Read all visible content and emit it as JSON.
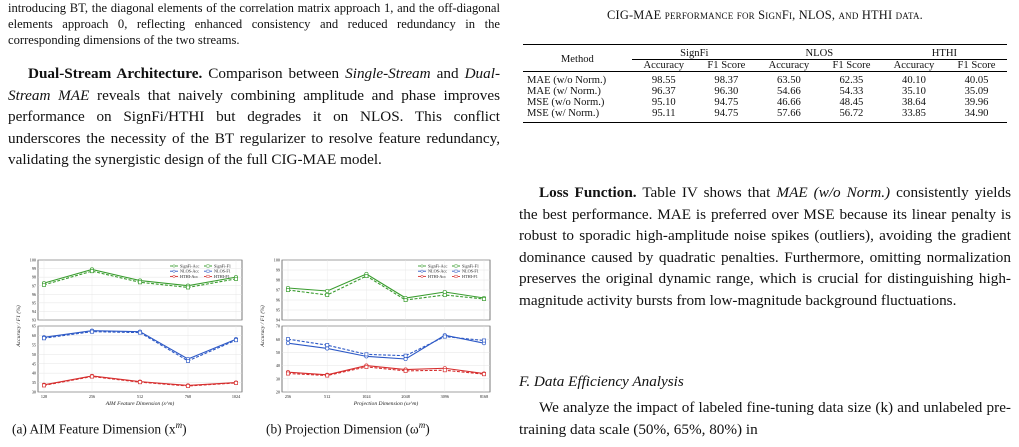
{
  "left_top_text": "introducing BT, the diagonal elements of the correlation matrix approach 1, and the off-diagonal elements approach 0, reflecting enhanced consistency and reduced redundancy in the corresponding dimensions of the two streams.",
  "dual_stream": {
    "heading": "Dual-Stream Architecture.",
    "text_1": " Comparison between ",
    "single_stream": "Single-Stream",
    "text_2": " and ",
    "dual_stream_mae": "Dual-Stream MAE",
    "text_3": " reveals that naively combining amplitude and phase improves performance on SignFi/HTHI but degrades it on NLOS. This conflict underscores the necessity of the BT regularizer to resolve feature redundancy, validating the synergistic design of the full CIG-MAE model."
  },
  "table": {
    "caption": "CIG-MAE performance for SignFi, NLOS, and HTHI data.",
    "method_header": "Method",
    "groups": [
      "SignFi",
      "NLOS",
      "HTHI"
    ],
    "sub_headers": [
      "Accuracy",
      "F1 Score",
      "Accuracy",
      "F1 Score",
      "Accuracy",
      "F1 Score"
    ],
    "rows": [
      {
        "method": "MAE (w/o Norm.)",
        "values": [
          "98.55",
          "98.37",
          "63.50",
          "62.35",
          "40.10",
          "40.05"
        ]
      },
      {
        "method": "MAE (w/ Norm.)",
        "values": [
          "96.37",
          "96.30",
          "54.66",
          "54.33",
          "35.10",
          "35.09"
        ]
      },
      {
        "method": "MSE (w/o Norm.)",
        "values": [
          "95.10",
          "94.75",
          "46.66",
          "48.45",
          "38.64",
          "39.96"
        ]
      },
      {
        "method": "MSE (w/ Norm.)",
        "values": [
          "95.11",
          "94.75",
          "57.66",
          "56.72",
          "33.85",
          "34.90"
        ]
      }
    ]
  },
  "loss_function": {
    "heading": "Loss Function.",
    "text_1": " Table IV shows that ",
    "italic": "MAE (w/o Norm.)",
    "text_2": " consistently yields the best performance. MAE is preferred over MSE because its linear penalty is robust to sporadic high-amplitude noise spikes (outliers), avoiding the gradient dominance caused by quadratic penalties. Furthermore, omitting normalization preserves the original dynamic range, which is crucial for distinguishing high-magnitude activity bursts from low-magnitude background fluctuations."
  },
  "section_f": "F. Data Efficiency Analysis",
  "data_eff_text": "We analyze the impact of labeled fine-tuning data size (k) and unlabeled pre-training data scale (50%, 65%, 80%) in",
  "figures": {
    "caption_a": "(a) AIM Feature Dimension (x",
    "caption_a_sup": "m",
    "caption_b": "(b) Projection Dimension (ω",
    "caption_b_sup": "m",
    "colors": {
      "signfi": "#3a9d2f",
      "nlos": "#2d59c6",
      "hthi": "#d62e2e"
    }
  },
  "chart_data": [
    {
      "type": "line",
      "xlabel": "AIM Feature Dimension (x^m)",
      "ylabel": "Accuracy / F1 (%)",
      "categories": [
        "128",
        "256",
        "512",
        "768",
        "1024"
      ],
      "legend": [
        "SignFi-Acc",
        "SignFi-F1",
        "NLOS-Acc",
        "NLOS-F1",
        "HTHI-Acc",
        "HTHI-F1"
      ],
      "upper": {
        "yticks": [
          "93",
          "94",
          "95",
          "96",
          "97",
          "98",
          "99",
          "100"
        ],
        "ylim": [
          93,
          100
        ],
        "series": [
          {
            "name": "SignFi-Acc",
            "values": [
              97.3,
              98.9,
              97.6,
              97.0,
              98.0
            ]
          },
          {
            "name": "SignFi-F1",
            "values": [
              97.1,
              98.7,
              97.4,
              96.8,
              97.8
            ]
          }
        ]
      },
      "lower": {
        "yticks": [
          "30",
          "35",
          "40",
          "45",
          "50",
          "55",
          "60",
          "65"
        ],
        "ylim": [
          30,
          65
        ],
        "series": [
          {
            "name": "NLOS-Acc",
            "values": [
              59.0,
              62.5,
              62.0,
              47.5,
              58.0
            ]
          },
          {
            "name": "NLOS-F1",
            "values": [
              58.5,
              62.0,
              61.5,
              46.5,
              57.5
            ]
          },
          {
            "name": "HTHI-Acc",
            "values": [
              33.8,
              38.5,
              35.5,
              33.5,
              35.0
            ]
          },
          {
            "name": "HTHI-F1",
            "values": [
              33.5,
              38.2,
              35.2,
              33.2,
              34.8
            ]
          }
        ]
      }
    },
    {
      "type": "line",
      "xlabel": "Projection Dimension (ω^m)",
      "ylabel": "Accuracy / F1 (%)",
      "categories": [
        "256",
        "512",
        "1024",
        "2048",
        "3096",
        "8168"
      ],
      "legend": [
        "SignFi-Acc",
        "SignFi-F1",
        "NLOS-Acc",
        "NLOS-F1",
        "HTHI-Acc",
        "HTHI-F1"
      ],
      "upper": {
        "yticks": [
          "94",
          "95",
          "96",
          "97",
          "98",
          "99",
          "100"
        ],
        "ylim": [
          94,
          100
        ],
        "series": [
          {
            "name": "SignFi-Acc",
            "values": [
              97.2,
              96.9,
              98.6,
              96.2,
              96.8,
              96.2
            ]
          },
          {
            "name": "SignFi-F1",
            "values": [
              97.0,
              96.5,
              98.4,
              96.0,
              96.5,
              96.1
            ]
          }
        ]
      },
      "lower": {
        "yticks": [
          "20",
          "30",
          "40",
          "50",
          "60",
          "70"
        ],
        "ylim": [
          20,
          70
        ],
        "series": [
          {
            "name": "NLOS-Acc",
            "values": [
              57.0,
              53.0,
              47.0,
              45.0,
              63.0,
              57.0
            ]
          },
          {
            "name": "NLOS-F1",
            "values": [
              60.0,
              55.5,
              48.5,
              47.5,
              62.0,
              59.0
            ]
          },
          {
            "name": "HTHI-Acc",
            "values": [
              35.0,
              33.0,
              40.0,
              37.0,
              38.0,
              34.0
            ]
          },
          {
            "name": "HTHI-F1",
            "values": [
              34.0,
              32.5,
              39.0,
              36.0,
              36.5,
              33.5
            ]
          }
        ]
      }
    }
  ]
}
